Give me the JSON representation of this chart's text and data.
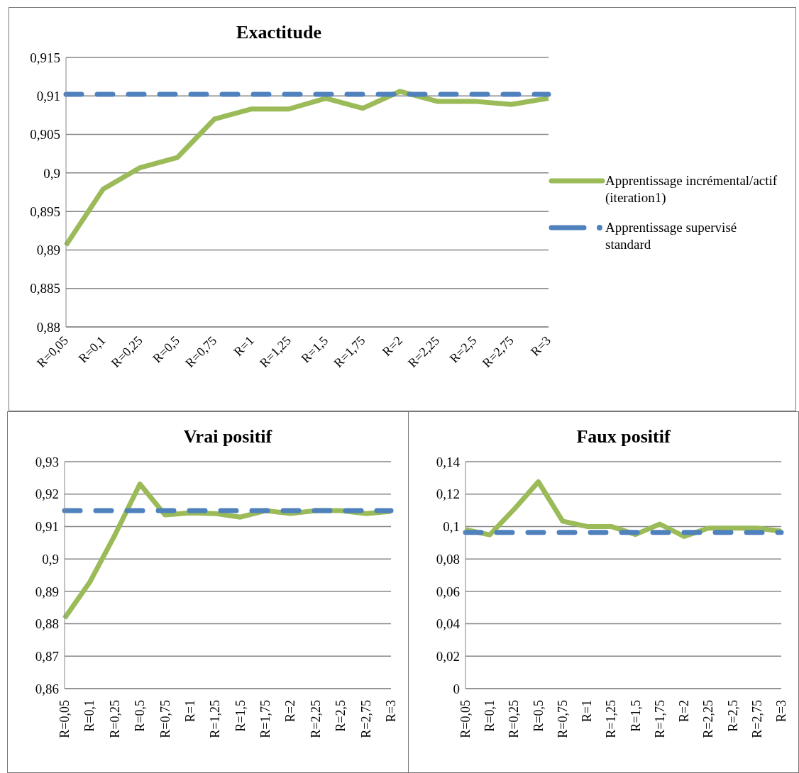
{
  "chart_data": [
    {
      "type": "line",
      "title": "Exactitude",
      "categories": [
        "R=0,05",
        "R=0,1",
        "R=0,25",
        "R=0,5",
        "R=0,75",
        "R=1",
        "R=1,25",
        "R=1,5",
        "R=1,75",
        "R=2",
        "R=2,25",
        "R=2,5",
        "R=2,75",
        "R=3"
      ],
      "series": [
        {
          "name": "Apprentissage incrémental/actif (iteration1)",
          "color": "#9bbb59",
          "line_style": "solid",
          "values": [
            0.8906,
            0.8979,
            0.9007,
            0.902,
            0.907,
            0.9083,
            0.9083,
            0.9097,
            0.9084,
            0.9106,
            0.9093,
            0.9093,
            0.9089,
            0.9097
          ]
        },
        {
          "name": "Apprentissage supervisé standard",
          "color": "#4f81bd",
          "line_style": "dashed",
          "values": [
            0.9102,
            0.9102,
            0.9102,
            0.9102,
            0.9102,
            0.9102,
            0.9102,
            0.9102,
            0.9102,
            0.9102,
            0.9102,
            0.9102,
            0.9102,
            0.9102
          ]
        }
      ],
      "ylim": [
        0.88,
        0.915
      ],
      "yticks": [
        {
          "value": 0.88,
          "label": "0,88"
        },
        {
          "value": 0.885,
          "label": "0,885"
        },
        {
          "value": 0.89,
          "label": "0,89"
        },
        {
          "value": 0.895,
          "label": "0,895"
        },
        {
          "value": 0.9,
          "label": "0,9"
        },
        {
          "value": 0.905,
          "label": "0,905"
        },
        {
          "value": 0.91,
          "label": "0,91"
        },
        {
          "value": 0.915,
          "label": "0,915"
        }
      ],
      "grid": "y",
      "legend": "right",
      "marker": "none"
    },
    {
      "type": "line",
      "title": "Vrai positif",
      "categories": [
        "R=0,05",
        "R=0,1",
        "R=0,25",
        "R=0,5",
        "R=0,75",
        "R=1",
        "R=1,25",
        "R=1,5",
        "R=1,75",
        "R=2",
        "R=2,25",
        "R=2,5",
        "R=2,75",
        "R=3"
      ],
      "series": [
        {
          "color": "#9bbb59",
          "line_style": "solid",
          "values": [
            0.8817,
            0.8928,
            0.9073,
            0.9231,
            0.9136,
            0.9142,
            0.914,
            0.9129,
            0.9149,
            0.914,
            0.9149,
            0.9149,
            0.914,
            0.9147
          ]
        },
        {
          "color": "#4f81bd",
          "line_style": "dashed",
          "values": [
            0.9149,
            0.9149,
            0.9149,
            0.9149,
            0.9149,
            0.9149,
            0.9149,
            0.9149,
            0.9149,
            0.9149,
            0.9149,
            0.9149,
            0.9149,
            0.9149
          ]
        }
      ],
      "ylim": [
        0.86,
        0.93
      ],
      "yticks": [
        {
          "value": 0.86,
          "label": "0,86"
        },
        {
          "value": 0.87,
          "label": "0,87"
        },
        {
          "value": 0.88,
          "label": "0,88"
        },
        {
          "value": 0.89,
          "label": "0,89"
        },
        {
          "value": 0.9,
          "label": "0,9"
        },
        {
          "value": 0.91,
          "label": "0,91"
        },
        {
          "value": 0.92,
          "label": "0,92"
        },
        {
          "value": 0.93,
          "label": "0,93"
        }
      ],
      "grid": "y",
      "legend": false,
      "marker": "none"
    },
    {
      "type": "line",
      "title": "Faux positif",
      "categories": [
        "R=0,05",
        "R=0,1",
        "R=0,25",
        "R=0,5",
        "R=0,75",
        "R=1",
        "R=1,25",
        "R=1,5",
        "R=1,75",
        "R=2",
        "R=2,25",
        "R=2,5",
        "R=2,75",
        "R=3"
      ],
      "series": [
        {
          "color": "#9bbb59",
          "line_style": "solid",
          "values": [
            0.098,
            0.0949,
            0.1106,
            0.1276,
            0.1033,
            0.1,
            0.1,
            0.0951,
            0.1015,
            0.0939,
            0.099,
            0.099,
            0.099,
            0.0971
          ]
        },
        {
          "color": "#4f81bd",
          "line_style": "dashed",
          "values": [
            0.0964,
            0.0964,
            0.0964,
            0.0964,
            0.0964,
            0.0964,
            0.0964,
            0.0964,
            0.0964,
            0.0964,
            0.0964,
            0.0964,
            0.0964,
            0.0964
          ]
        }
      ],
      "ylim": [
        0,
        0.14
      ],
      "yticks": [
        0,
        {
          "value": 0.02,
          "label": "0,02"
        },
        {
          "value": 0.04,
          "label": "0,04"
        },
        {
          "value": 0.06,
          "label": "0,06"
        },
        {
          "value": 0.08,
          "label": "0,08"
        },
        {
          "value": 0.1,
          "label": "0,1"
        },
        {
          "value": 0.12,
          "label": "0,12"
        },
        {
          "value": 0.14,
          "label": "0,14"
        }
      ],
      "grid": "y",
      "legend": false,
      "marker": "none"
    }
  ]
}
